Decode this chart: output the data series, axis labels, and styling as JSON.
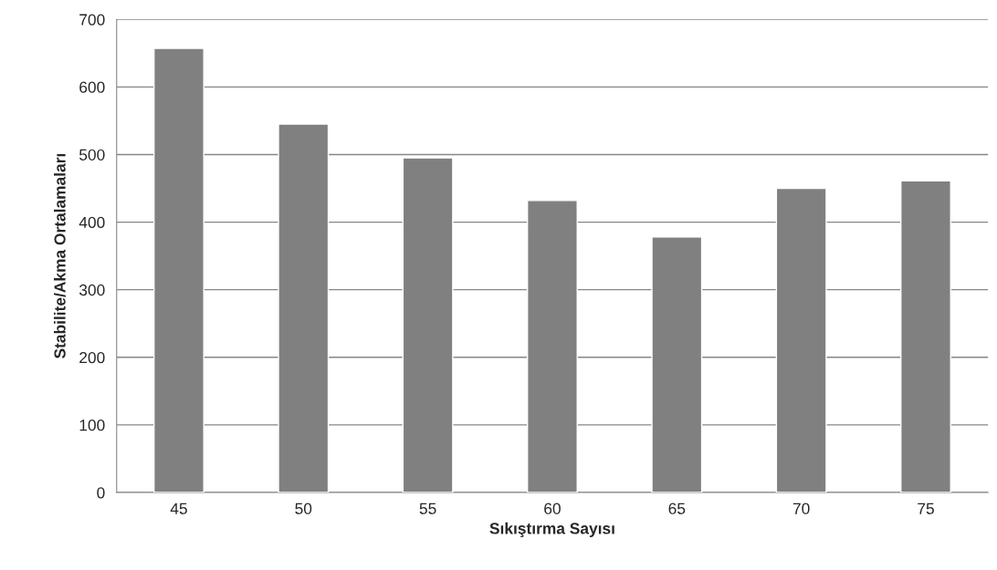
{
  "chart_data": {
    "type": "bar",
    "xlabel": "Sıkıştırma Sayısı",
    "ylabel": "Stabilite/Akma Ortalamaları",
    "categories": [
      "45",
      "50",
      "55",
      "60",
      "65",
      "70",
      "75"
    ],
    "values": [
      657,
      545,
      495,
      432,
      378,
      450,
      461
    ],
    "color": "#808080",
    "ylim": [
      0,
      700
    ],
    "yticks": [
      0,
      100,
      200,
      300,
      400,
      500,
      600,
      700
    ],
    "grid": "y"
  }
}
